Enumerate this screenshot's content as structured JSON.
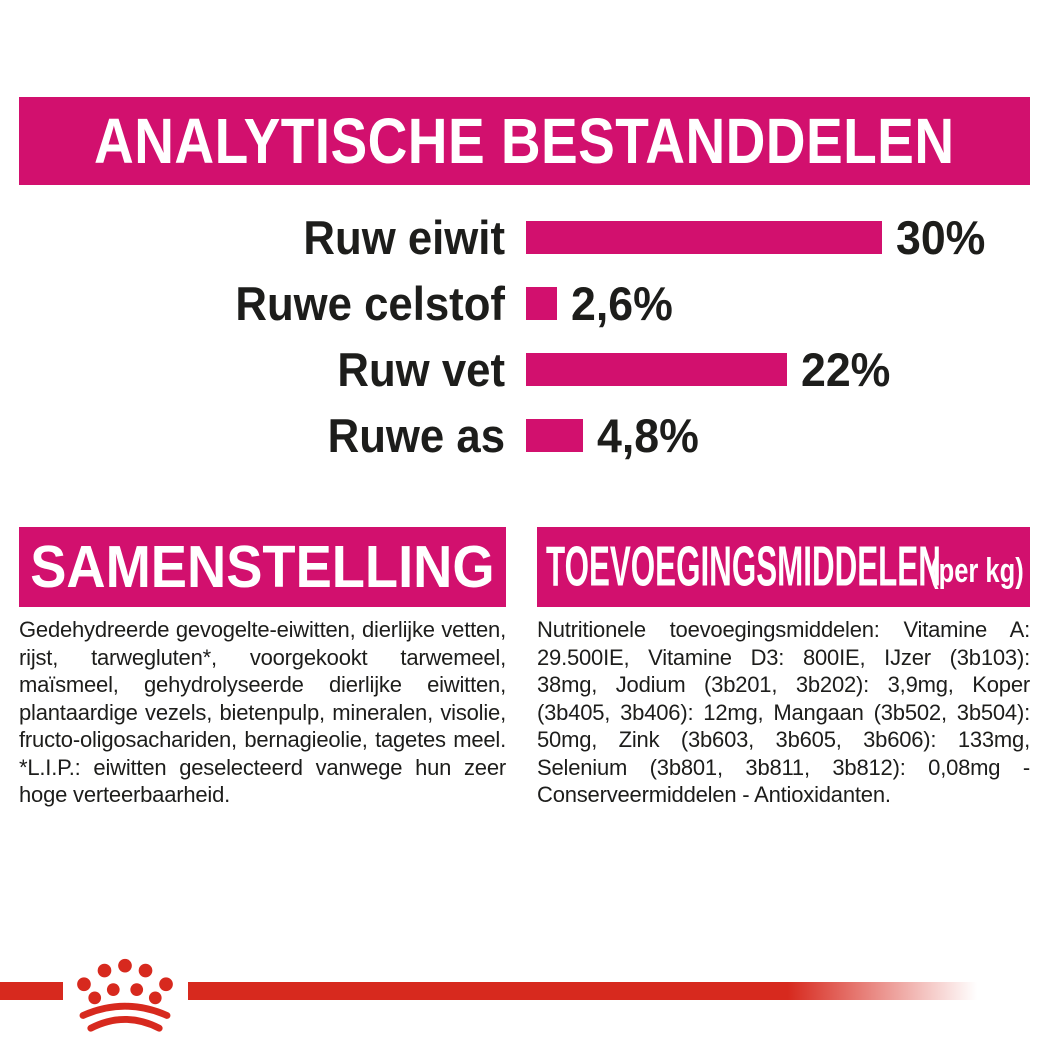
{
  "colors": {
    "pink": "#d2106e",
    "red": "#d7291e",
    "text": "#1d1d1b",
    "background": "#ffffff"
  },
  "analytical_section": {
    "title": "ANALYTISCHE BESTANDDELEN"
  },
  "chart_data": {
    "type": "bar",
    "orientation": "horizontal",
    "categories": [
      "Ruw eiwit",
      "Ruwe celstof",
      "Ruw vet",
      "Ruwe as"
    ],
    "values": [
      30,
      2.6,
      22,
      4.8
    ],
    "value_labels": [
      "30%",
      "2,6%",
      "22%",
      "4,8%"
    ],
    "unit": "%",
    "xlim": [
      0,
      30
    ],
    "bar_color": "#d2106e",
    "grid": "off",
    "legend": "none",
    "title": "ANALYTISCHE BESTANDDELEN"
  },
  "composition_section": {
    "title": "SAMENSTELLING",
    "body": "Gedehydreerde gevogelte-eiwitten, dierlijke vetten, rijst, tarwegluten*, voorgekookt tarwemeel, maïsmeel, gehydrolyseerde dierlijke eiwitten, plantaardige vezels, bietenpulp, mineralen, visolie, fructo-oligosachariden, bernagieolie, tagetes meel. *L.I.P.: eiwitten geselecteerd vanwege hun zeer hoge verteerbaarheid."
  },
  "additives_section": {
    "title": "TOEVOEGINGSMIDDELEN",
    "title_suffix": "(per kg)",
    "body": "Nutritionele toevoegingsmiddelen: Vitamine A: 29.500IE, Vitamine D3: 800IE, IJzer (3b103): 38mg, Jodium (3b201, 3b202): 3,9mg, Koper (3b405, 3b406): 12mg, Mangaan (3b502, 3b504): 50mg, Zink (3b603, 3b605, 3b606): 133mg, Selenium (3b801, 3b811, 3b812): 0,08mg - Conserveermiddelen - Antioxidanten."
  },
  "footer": {
    "logo": "royal-canin-crown-logo"
  }
}
